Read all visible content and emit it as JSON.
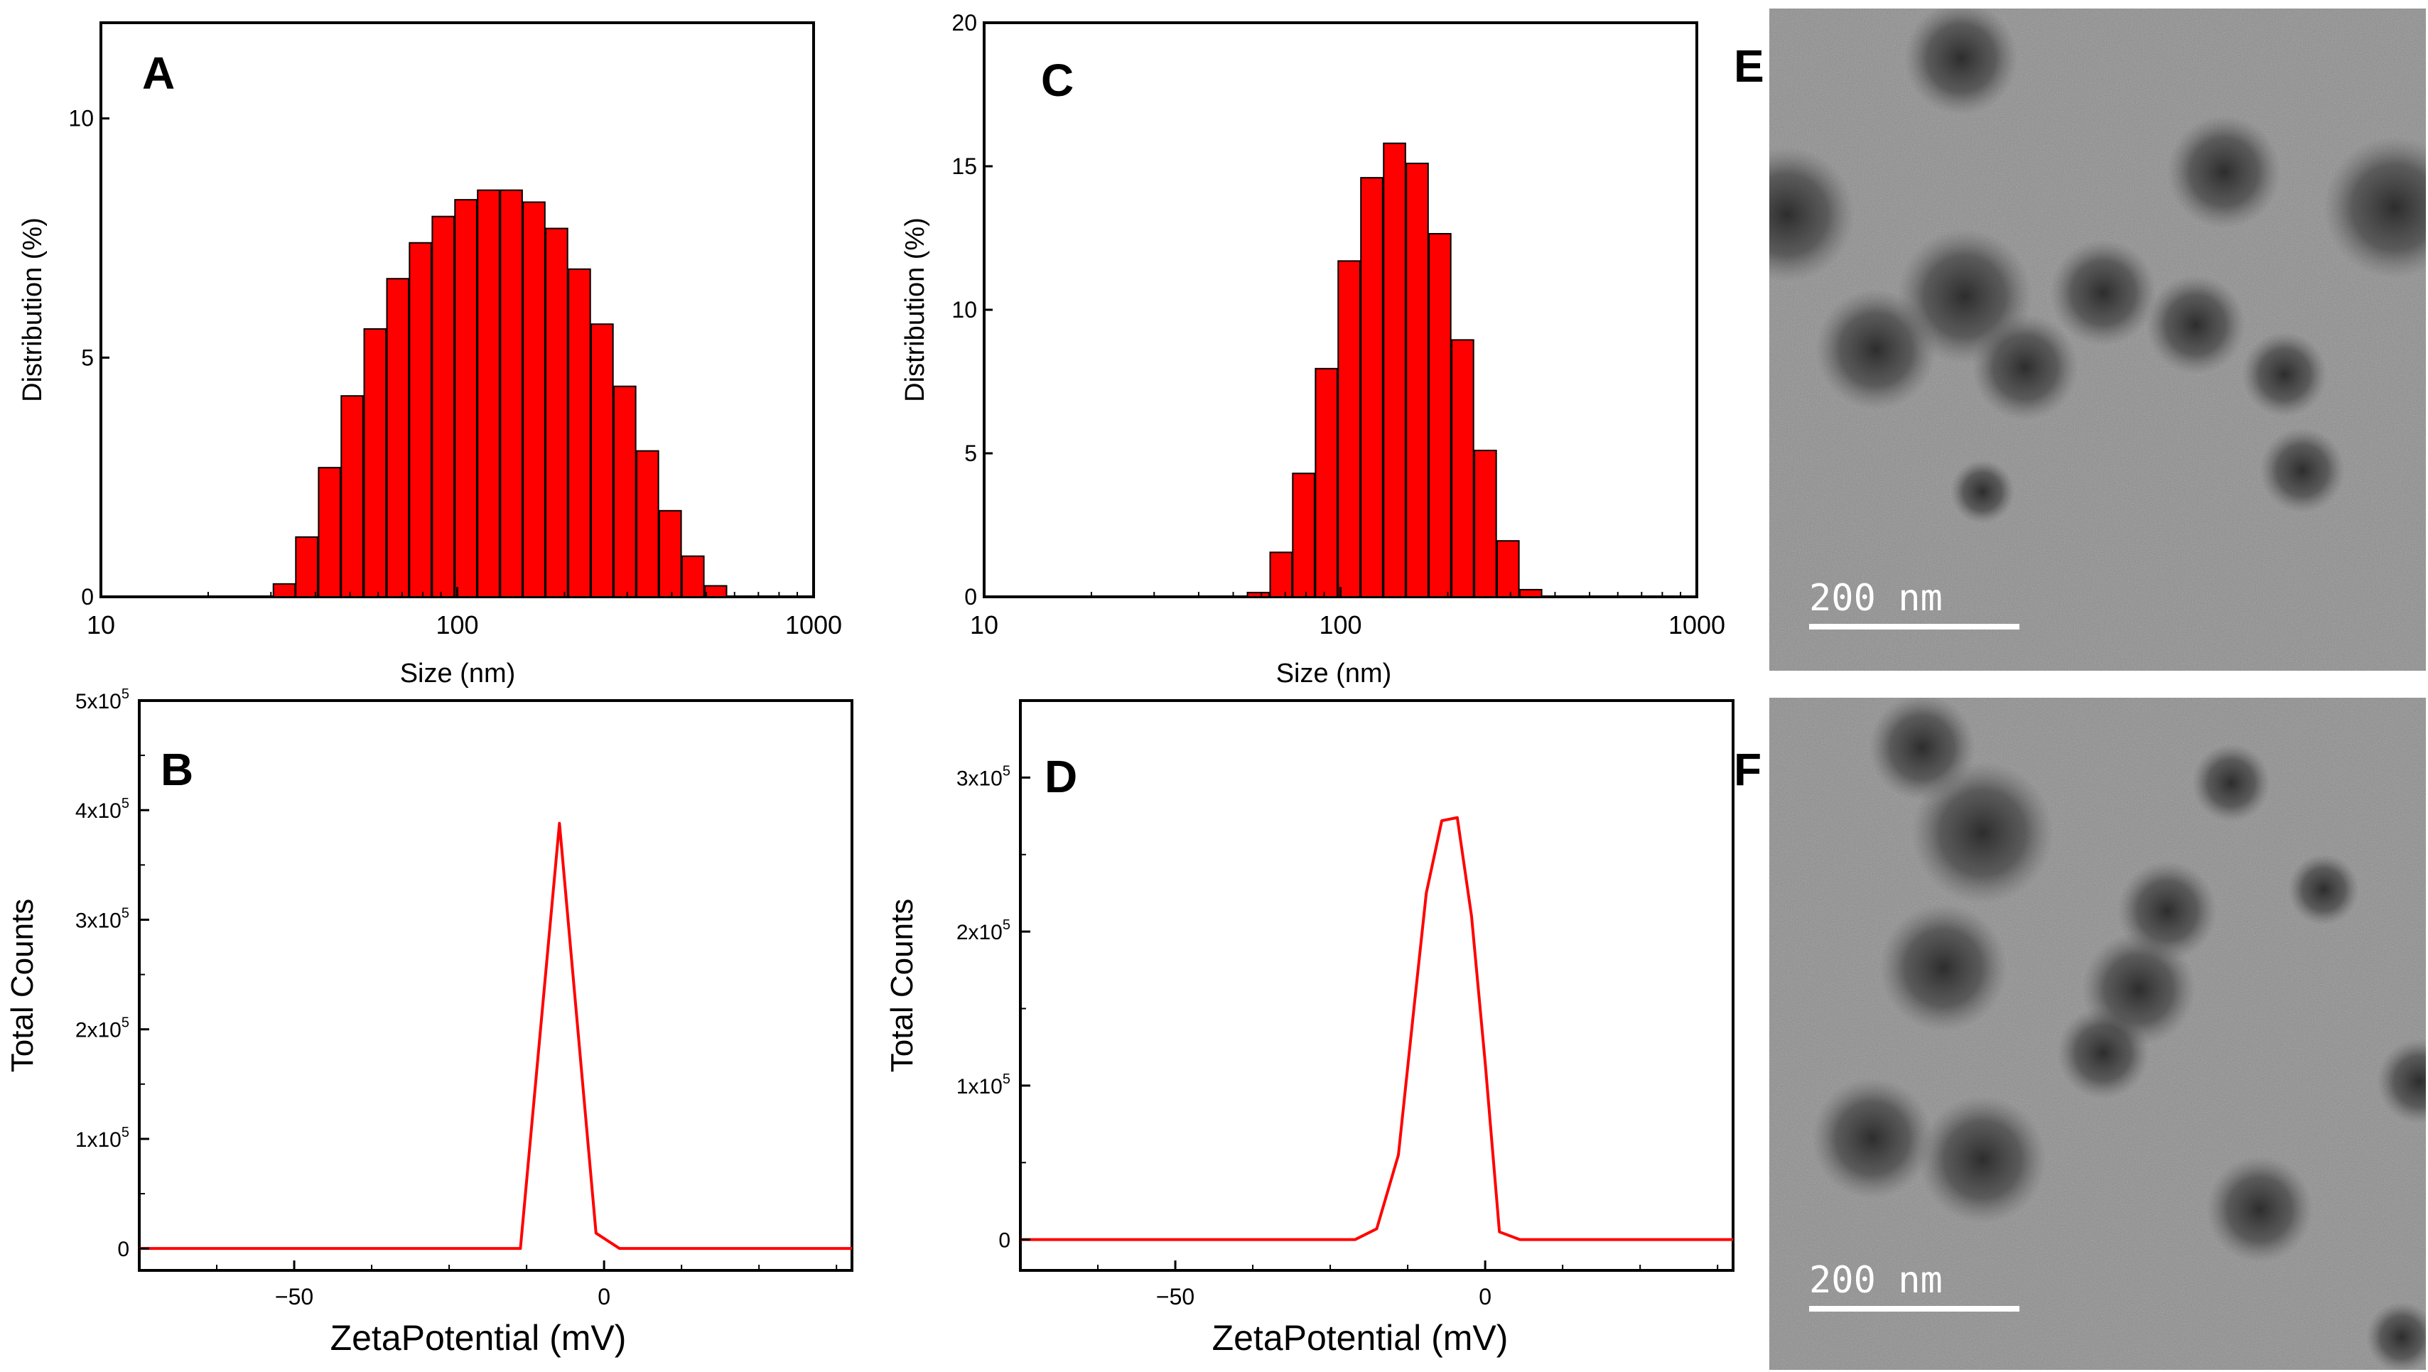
{
  "panels": {
    "A": {
      "letter": "A",
      "chart_data": {
        "type": "bar",
        "title": "",
        "xlabel": "Size (nm)",
        "ylabel": "Distribution (%)",
        "xscale": "log",
        "xlim": [
          10,
          1000
        ],
        "ylim": [
          0,
          12
        ],
        "xticks": [
          10,
          100,
          1000
        ],
        "yticks": [
          0,
          5,
          10
        ],
        "x": [
          32.7,
          37.8,
          43.8,
          50.7,
          58.8,
          68.1,
          78.8,
          91.3,
          105.7,
          122.4,
          141.8,
          164.2,
          190.1,
          220.2,
          255.0,
          295.3,
          342.0,
          396.1,
          458.7,
          531.2
        ],
        "values": [
          0.27,
          1.25,
          2.7,
          4.2,
          5.6,
          6.65,
          7.4,
          7.95,
          8.3,
          8.5,
          8.5,
          8.25,
          7.7,
          6.85,
          5.7,
          4.4,
          3.05,
          1.8,
          0.85,
          0.23
        ],
        "color": "#ff0000"
      }
    },
    "B": {
      "letter": "B",
      "chart_data": {
        "type": "line",
        "xlabel": "ZetaPotential (mV)",
        "ylabel": "Total Counts",
        "xlim": [
          -75,
          40
        ],
        "ylim": [
          -20000,
          500000
        ],
        "xticks": [
          -50,
          0
        ],
        "ytick_values": [
          0,
          100000,
          200000,
          300000,
          400000,
          500000
        ],
        "ytick_labels": [
          {
            "base": "0",
            "exp": ""
          },
          {
            "base": "1x10",
            "exp": "5"
          },
          {
            "base": "2x10",
            "exp": "5"
          },
          {
            "base": "3x10",
            "exp": "5"
          },
          {
            "base": "4x10",
            "exp": "5"
          },
          {
            "base": "5x10",
            "exp": "5"
          }
        ],
        "x": [
          -75,
          -13.5,
          -7.2,
          -1.3,
          2.5,
          40
        ],
        "y": [
          0,
          0,
          388000,
          14000,
          0,
          0
        ],
        "color": "#ff0000"
      }
    },
    "C": {
      "letter": "C",
      "chart_data": {
        "type": "bar",
        "title": "",
        "xlabel": "Size (nm)",
        "ylabel": "Distribution (%)",
        "xscale": "log",
        "xlim": [
          10,
          1000
        ],
        "ylim": [
          0,
          20
        ],
        "xticks": [
          10,
          100,
          1000
        ],
        "yticks": [
          0,
          5,
          10,
          15,
          20
        ],
        "x": [
          58.8,
          68.1,
          78.8,
          91.3,
          105.7,
          122.4,
          141.8,
          164.2,
          190.1,
          220.2,
          255.0,
          295.3,
          342.0
        ],
        "values": [
          0.15,
          1.55,
          4.3,
          7.95,
          11.7,
          14.6,
          15.8,
          15.1,
          12.65,
          8.95,
          5.1,
          1.95,
          0.25
        ],
        "color": "#ff0000"
      }
    },
    "D": {
      "letter": "D",
      "chart_data": {
        "type": "line",
        "xlabel": "ZetaPotential (mV)",
        "ylabel": "Total Counts",
        "xlim": [
          -75,
          40
        ],
        "ylim": [
          -20000,
          350000
        ],
        "xticks": [
          -50,
          0
        ],
        "ytick_values": [
          0,
          100000,
          200000,
          300000
        ],
        "ytick_labels": [
          {
            "base": "0",
            "exp": ""
          },
          {
            "base": "1x10",
            "exp": "5"
          },
          {
            "base": "2x10",
            "exp": "5"
          },
          {
            "base": "3x10",
            "exp": "5"
          }
        ],
        "x": [
          -75,
          -21,
          -17.5,
          -14,
          -11.5,
          -9.5,
          -7,
          -4.5,
          -2.2,
          0,
          2.3,
          5.6,
          40
        ],
        "y": [
          0,
          0,
          7000,
          55000,
          150000,
          225000,
          272000,
          274000,
          210000,
          115000,
          5000,
          0,
          0
        ],
        "color": "#ff0000"
      }
    },
    "E": {
      "letter": "E",
      "scalebar_label": "200 nm"
    },
    "F": {
      "letter": "F",
      "scalebar_label": "200 nm"
    }
  }
}
